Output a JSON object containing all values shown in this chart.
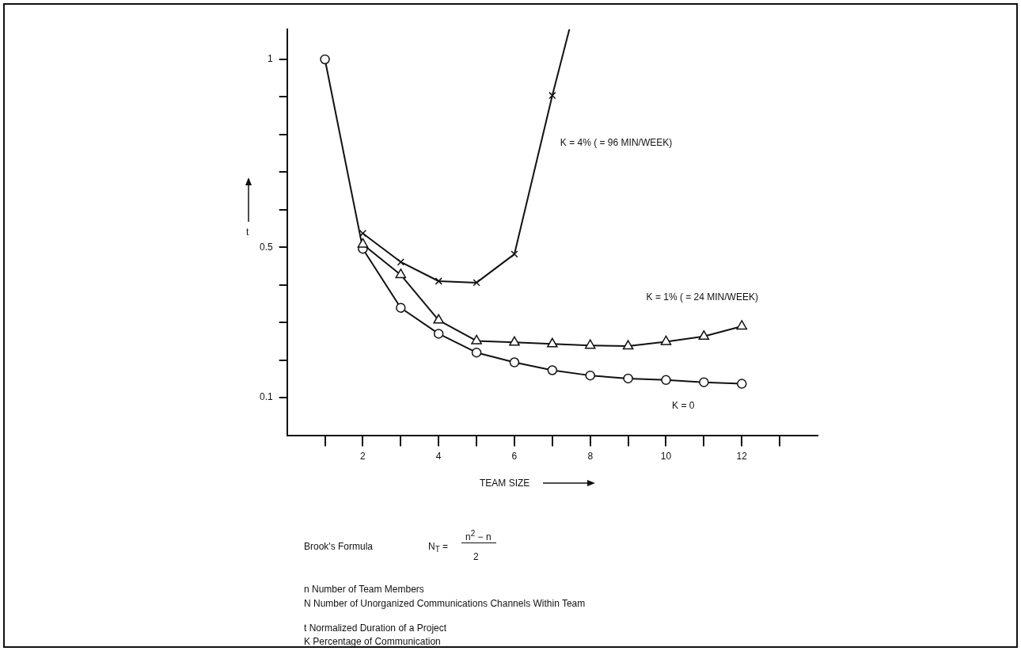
{
  "chart_data": {
    "type": "line",
    "xlabel": "TEAM SIZE",
    "ylabel": "t",
    "xlim": [
      0,
      14
    ],
    "xticks": [
      {
        "value": 1,
        "label": null
      },
      2,
      {
        "value": 3,
        "label": null
      },
      4,
      {
        "value": 5,
        "label": null
      },
      6,
      {
        "value": 7,
        "label": null
      },
      8,
      {
        "value": 9,
        "label": null
      },
      10,
      {
        "value": 11,
        "label": null
      },
      12,
      {
        "value": 13,
        "label": null
      }
    ],
    "ylim": [
      0,
      1.08
    ],
    "yticks": [
      0.1,
      {
        "value": 0.2,
        "label": null
      },
      {
        "value": 0.3,
        "label": null
      },
      {
        "value": 0.4,
        "label": null
      },
      0.5,
      {
        "value": 0.6,
        "label": null
      },
      {
        "value": 0.7,
        "label": null
      },
      {
        "value": 0.8,
        "label": null
      },
      {
        "value": 0.9,
        "label": null
      },
      1
    ],
    "grid": false,
    "legend": false,
    "line_style": "solid",
    "series": [
      {
        "name": "K = 0",
        "color": "#111111",
        "marker": "circle",
        "x": [
          1,
          2,
          3,
          4,
          5,
          6,
          7,
          8,
          9,
          10,
          11,
          12
        ],
        "values": [
          1.0,
          0.496,
          0.339,
          0.27,
          0.22,
          0.194,
          0.173,
          0.159,
          0.151,
          0.147,
          0.141,
          0.137
        ]
      },
      {
        "name": "K = 1% ( = 24 MIN/WEEK)",
        "color": "#111111",
        "marker": "triangle",
        "x": [
          2,
          3,
          4,
          5,
          6,
          7,
          8,
          9,
          10,
          11,
          12
        ],
        "values": [
          0.508,
          0.427,
          0.306,
          0.251,
          0.247,
          0.243,
          0.239,
          0.237,
          0.249,
          0.263,
          0.29
        ]
      },
      {
        "name": "K = 4% ( = 96 MIN/WEEK)",
        "color": "#111111",
        "marker": "cross",
        "x": [
          2,
          3,
          4,
          5,
          6,
          7
        ],
        "values": [
          0.537,
          0.461,
          0.41,
          0.406,
          0.482,
          0.904
        ]
      },
      {
        "color": "#111111",
        "marker": "none",
        "x": [
          7,
          7.45
        ],
        "values": [
          0.904,
          1.08
        ]
      }
    ],
    "annotations": [
      "Brook's Formula",
      "N$_{T}$ =",
      "n$^{2}$ − n",
      "2",
      "n  Number of Team Members",
      "N  Number of Unorganized Communications Channels Within Team",
      "t  Normalized Duration of a Project",
      "K  Percentage of Communication"
    ]
  }
}
